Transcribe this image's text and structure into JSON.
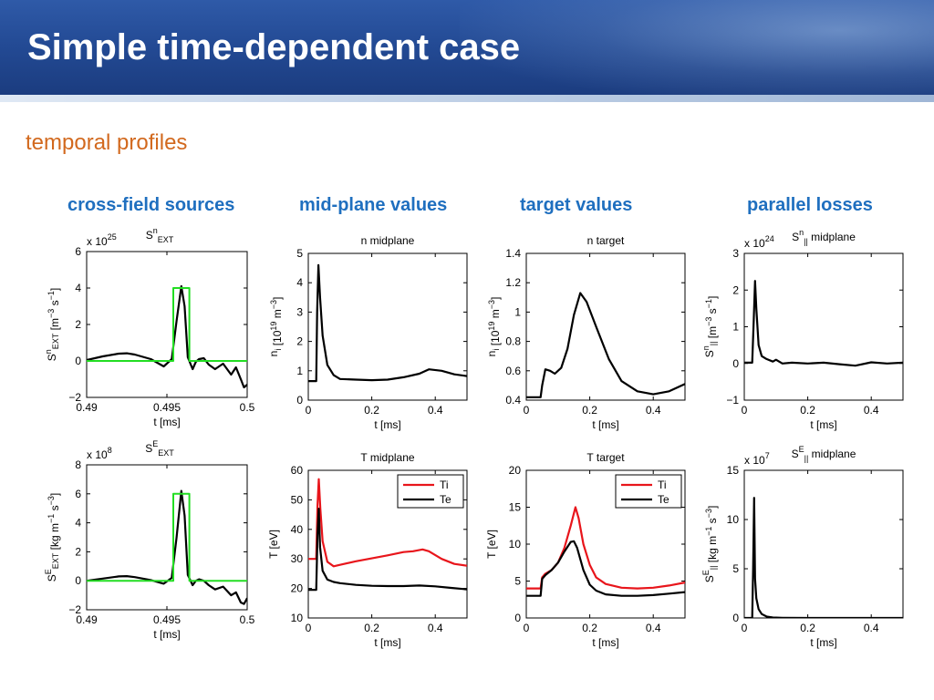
{
  "slide": {
    "title": "Simple time-dependent case",
    "subtitle": "temporal profiles",
    "columns": [
      "cross-field sources",
      "mid-plane values",
      "target values",
      "parallel losses"
    ]
  },
  "colors": {
    "red": "#e8151b",
    "black": "#000000",
    "green": "#22dd22"
  },
  "chart_data": [
    {
      "id": "sn_ext",
      "type": "line",
      "title_main": "S",
      "title_sup": "n",
      "title_sub": "EXT",
      "exponent": "25",
      "xlabel": "t [ms]",
      "ylabel": {
        "main": "S",
        "sup": "n",
        "sub": "EXT",
        "rest": " [m",
        "rest_sup": "−3",
        "rest2": " s",
        "rest_sup2": "−1",
        "rest3": "]"
      },
      "xlim": [
        0.49,
        0.5
      ],
      "ylim": [
        -2,
        6
      ],
      "xticks": [
        0.49,
        0.495,
        0.5
      ],
      "xtick_labels": [
        "0.49",
        "0.495",
        "0.5"
      ],
      "yticks": [
        -2,
        0,
        2,
        4,
        6
      ],
      "ytick_labels": [
        "−2",
        "0",
        "2",
        "4",
        "6"
      ],
      "series": [
        {
          "color": "#000000",
          "width": 2.2,
          "x": [
            0.49,
            0.491,
            0.492,
            0.4925,
            0.493,
            0.494,
            0.4948,
            0.4953,
            0.4956,
            0.4959,
            0.4961,
            0.4963,
            0.4966,
            0.4968,
            0.497,
            0.4973,
            0.4976,
            0.498,
            0.4985,
            0.499,
            0.4993,
            0.4996,
            0.4998,
            0.5
          ],
          "y": [
            0.05,
            0.25,
            0.4,
            0.42,
            0.35,
            0.1,
            -0.3,
            0.1,
            2.2,
            4.1,
            3.0,
            0.2,
            -0.45,
            -0.05,
            0.1,
            0.15,
            -0.2,
            -0.45,
            -0.15,
            -0.75,
            -0.35,
            -1.0,
            -1.45,
            -1.3
          ]
        },
        {
          "color": "#22dd22",
          "width": 2,
          "x": [
            0.49,
            0.4954,
            0.4954,
            0.4964,
            0.4964,
            0.5
          ],
          "y": [
            0,
            0,
            4,
            4,
            0,
            0
          ]
        }
      ]
    },
    {
      "id": "n_midplane",
      "type": "line",
      "title_main": "n midplane",
      "xlabel": "t [ms]",
      "ylabel": {
        "main": "n",
        "sub": "i",
        "rest": " [10",
        "rest_sup": "19",
        "rest2": " m",
        "rest_sup2": "−3",
        "rest3": "]"
      },
      "xlim": [
        0,
        0.5
      ],
      "ylim": [
        0,
        5
      ],
      "xticks": [
        0,
        0.2,
        0.4
      ],
      "xtick_labels": [
        "0",
        "0.2",
        "0.4"
      ],
      "yticks": [
        0,
        1,
        2,
        3,
        4,
        5
      ],
      "ytick_labels": [
        "0",
        "1",
        "2",
        "3",
        "4",
        "5"
      ],
      "series": [
        {
          "color": "#000000",
          "width": 2.2,
          "x": [
            0,
            0.025,
            0.028,
            0.032,
            0.037,
            0.045,
            0.06,
            0.08,
            0.1,
            0.15,
            0.2,
            0.25,
            0.3,
            0.35,
            0.38,
            0.42,
            0.46,
            0.5
          ],
          "y": [
            0.65,
            0.65,
            3.0,
            4.6,
            3.5,
            2.2,
            1.2,
            0.85,
            0.72,
            0.7,
            0.68,
            0.7,
            0.78,
            0.9,
            1.05,
            1.0,
            0.88,
            0.82
          ]
        }
      ]
    },
    {
      "id": "n_target",
      "type": "line",
      "title_main": "n target",
      "xlabel": "t [ms]",
      "ylabel": {
        "main": "n",
        "sub": "i",
        "rest": " [10",
        "rest_sup": "19",
        "rest2": " m",
        "rest_sup2": "−3",
        "rest3": "]"
      },
      "xlim": [
        0,
        0.5
      ],
      "ylim": [
        0.4,
        1.4
      ],
      "xticks": [
        0,
        0.2,
        0.4
      ],
      "xtick_labels": [
        "0",
        "0.2",
        "0.4"
      ],
      "yticks": [
        0.4,
        0.6,
        0.8,
        1.0,
        1.2,
        1.4
      ],
      "ytick_labels": [
        "0.4",
        "0.6",
        "0.8",
        "1",
        "1.2",
        "1.4"
      ],
      "series": [
        {
          "color": "#000000",
          "width": 2.2,
          "x": [
            0,
            0.045,
            0.05,
            0.06,
            0.075,
            0.09,
            0.11,
            0.13,
            0.15,
            0.17,
            0.19,
            0.22,
            0.26,
            0.3,
            0.35,
            0.4,
            0.45,
            0.5
          ],
          "y": [
            0.42,
            0.42,
            0.5,
            0.61,
            0.6,
            0.58,
            0.62,
            0.75,
            0.98,
            1.13,
            1.07,
            0.9,
            0.68,
            0.53,
            0.46,
            0.44,
            0.46,
            0.51
          ]
        }
      ]
    },
    {
      "id": "sn_par",
      "type": "line",
      "title_main": "S",
      "title_sup": "n",
      "title_sub": "||",
      "title_rest": " midplane",
      "exponent": "24",
      "xlabel": "t [ms]",
      "ylabel": {
        "main": "S",
        "sup": "n",
        "sub": "||",
        "rest": " [m",
        "rest_sup": "−3",
        "rest2": " s",
        "rest_sup2": "−1",
        "rest3": "]"
      },
      "xlim": [
        0,
        0.5
      ],
      "ylim": [
        -1,
        3
      ],
      "xticks": [
        0,
        0.2,
        0.4
      ],
      "xtick_labels": [
        "0",
        "0.2",
        "0.4"
      ],
      "yticks": [
        -1,
        0,
        1,
        2,
        3
      ],
      "ytick_labels": [
        "−1",
        "0",
        "1",
        "2",
        "3"
      ],
      "series": [
        {
          "color": "#000000",
          "width": 2.2,
          "x": [
            0,
            0.025,
            0.03,
            0.034,
            0.038,
            0.045,
            0.055,
            0.07,
            0.09,
            0.1,
            0.12,
            0.15,
            0.2,
            0.25,
            0.3,
            0.35,
            0.4,
            0.45,
            0.5
          ],
          "y": [
            0.02,
            0.02,
            1.2,
            2.25,
            1.5,
            0.5,
            0.2,
            0.12,
            0.05,
            0.1,
            0.0,
            0.02,
            0.0,
            0.02,
            -0.02,
            -0.06,
            0.03,
            0.0,
            0.02
          ]
        }
      ]
    },
    {
      "id": "se_ext",
      "type": "line",
      "title_main": "S",
      "title_sup": "E",
      "title_sub": "EXT",
      "exponent": "8",
      "xlabel": "t [ms]",
      "ylabel": {
        "main": "S",
        "sup": "E",
        "sub": "EXT",
        "rest": " [kg m",
        "rest_sup": "−1",
        "rest2": " s",
        "rest_sup2": "−3",
        "rest3": "]"
      },
      "xlim": [
        0.49,
        0.5
      ],
      "ylim": [
        -2,
        8
      ],
      "xticks": [
        0.49,
        0.495,
        0.5
      ],
      "xtick_labels": [
        "0.49",
        "0.495",
        "0.5"
      ],
      "yticks": [
        -2,
        0,
        2,
        4,
        6,
        8
      ],
      "ytick_labels": [
        "−2",
        "0",
        "2",
        "4",
        "6",
        "8"
      ],
      "series": [
        {
          "color": "#000000",
          "width": 2.2,
          "x": [
            0.49,
            0.491,
            0.492,
            0.4925,
            0.493,
            0.494,
            0.4948,
            0.4953,
            0.4956,
            0.4959,
            0.4961,
            0.4963,
            0.4966,
            0.4968,
            0.497,
            0.4973,
            0.4976,
            0.498,
            0.4985,
            0.499,
            0.4993,
            0.4996,
            0.4998,
            0.5
          ],
          "y": [
            0.0,
            0.15,
            0.3,
            0.32,
            0.25,
            0.05,
            -0.2,
            0.2,
            3.0,
            6.2,
            4.5,
            0.4,
            -0.3,
            0.0,
            0.1,
            0.0,
            -0.3,
            -0.6,
            -0.4,
            -1.0,
            -0.8,
            -1.5,
            -1.6,
            -1.2
          ]
        },
        {
          "color": "#22dd22",
          "width": 2,
          "x": [
            0.49,
            0.4954,
            0.4954,
            0.4964,
            0.4964,
            0.5
          ],
          "y": [
            0,
            0,
            6,
            6,
            0,
            0
          ]
        }
      ]
    },
    {
      "id": "t_midplane",
      "type": "line",
      "title_main": "T midplane",
      "xlabel": "t [ms]",
      "ylabel": {
        "main": "T [eV]"
      },
      "xlim": [
        0,
        0.5
      ],
      "ylim": [
        10,
        60
      ],
      "xticks": [
        0,
        0.2,
        0.4
      ],
      "xtick_labels": [
        "0",
        "0.2",
        "0.4"
      ],
      "yticks": [
        10,
        20,
        30,
        40,
        50,
        60
      ],
      "ytick_labels": [
        "10",
        "20",
        "30",
        "40",
        "50",
        "60"
      ],
      "legend": [
        "Ti",
        "Te"
      ],
      "series": [
        {
          "name": "Ti",
          "color": "#e8151b",
          "width": 2.2,
          "x": [
            0,
            0.025,
            0.029,
            0.033,
            0.038,
            0.045,
            0.06,
            0.08,
            0.1,
            0.15,
            0.2,
            0.25,
            0.3,
            0.33,
            0.36,
            0.38,
            0.42,
            0.46,
            0.5
          ],
          "y": [
            30,
            30,
            48,
            57,
            47,
            36,
            29,
            27.5,
            28,
            29.2,
            30.2,
            31.2,
            32.3,
            32.6,
            33.2,
            32.6,
            30,
            28.3,
            27.7
          ]
        },
        {
          "name": "Te",
          "color": "#000000",
          "width": 2.2,
          "x": [
            0,
            0.025,
            0.029,
            0.033,
            0.037,
            0.045,
            0.06,
            0.08,
            0.1,
            0.15,
            0.2,
            0.25,
            0.3,
            0.35,
            0.4,
            0.45,
            0.5
          ],
          "y": [
            19.5,
            19.5,
            38,
            47,
            34,
            26,
            23,
            22.2,
            21.8,
            21.2,
            20.9,
            20.8,
            20.8,
            21.0,
            20.7,
            20.2,
            19.7
          ]
        }
      ]
    },
    {
      "id": "t_target",
      "type": "line",
      "title_main": "T target",
      "xlabel": "t [ms]",
      "ylabel": {
        "main": "T [eV]"
      },
      "xlim": [
        0,
        0.5
      ],
      "ylim": [
        0,
        20
      ],
      "xticks": [
        0,
        0.2,
        0.4
      ],
      "xtick_labels": [
        "0",
        "0.2",
        "0.4"
      ],
      "yticks": [
        0,
        5,
        10,
        15,
        20
      ],
      "ytick_labels": [
        "0",
        "5",
        "10",
        "15",
        "20"
      ],
      "legend": [
        "Ti",
        "Te"
      ],
      "series": [
        {
          "name": "Ti",
          "color": "#e8151b",
          "width": 2.2,
          "x": [
            0,
            0.045,
            0.05,
            0.06,
            0.08,
            0.1,
            0.12,
            0.14,
            0.155,
            0.165,
            0.18,
            0.2,
            0.22,
            0.25,
            0.3,
            0.35,
            0.4,
            0.45,
            0.5
          ],
          "y": [
            4,
            4,
            5.5,
            6,
            6.5,
            7.5,
            9.5,
            12.5,
            15,
            13.5,
            10,
            7.2,
            5.5,
            4.6,
            4.1,
            4.0,
            4.1,
            4.4,
            4.8
          ]
        },
        {
          "name": "Te",
          "color": "#000000",
          "width": 2.2,
          "x": [
            0,
            0.045,
            0.05,
            0.06,
            0.08,
            0.1,
            0.12,
            0.14,
            0.15,
            0.16,
            0.18,
            0.2,
            0.22,
            0.25,
            0.3,
            0.35,
            0.4,
            0.45,
            0.5
          ],
          "y": [
            3,
            3,
            5.3,
            5.8,
            6.5,
            7.5,
            9,
            10.3,
            10.4,
            9.5,
            6.5,
            4.5,
            3.7,
            3.2,
            3.0,
            3.0,
            3.1,
            3.3,
            3.5
          ]
        }
      ]
    },
    {
      "id": "se_par",
      "type": "line",
      "title_main": "S",
      "title_sup": "E",
      "title_sub": "||",
      "title_rest": " midplane",
      "exponent": "7",
      "xlabel": "t [ms]",
      "ylabel": {
        "main": "S",
        "sup": "E",
        "sub": "||",
        "rest": " [kg m",
        "rest_sup": "−1",
        "rest2": " s",
        "rest_sup2": "−3",
        "rest3": "]"
      },
      "xlim": [
        0,
        0.5
      ],
      "ylim": [
        0,
        15
      ],
      "xticks": [
        0,
        0.2,
        0.4
      ],
      "xtick_labels": [
        "0",
        "0.2",
        "0.4"
      ],
      "yticks": [
        0,
        5,
        10,
        15
      ],
      "ytick_labels": [
        "0",
        "5",
        "10",
        "15"
      ],
      "series": [
        {
          "color": "#000000",
          "width": 2.2,
          "x": [
            0,
            0.025,
            0.028,
            0.031,
            0.034,
            0.038,
            0.045,
            0.055,
            0.07,
            0.09,
            0.12,
            0.2,
            0.3,
            0.5
          ],
          "y": [
            0,
            0,
            5,
            12.2,
            4,
            2.0,
            0.9,
            0.4,
            0.15,
            0.05,
            0.02,
            0,
            0,
            0
          ]
        }
      ]
    }
  ]
}
